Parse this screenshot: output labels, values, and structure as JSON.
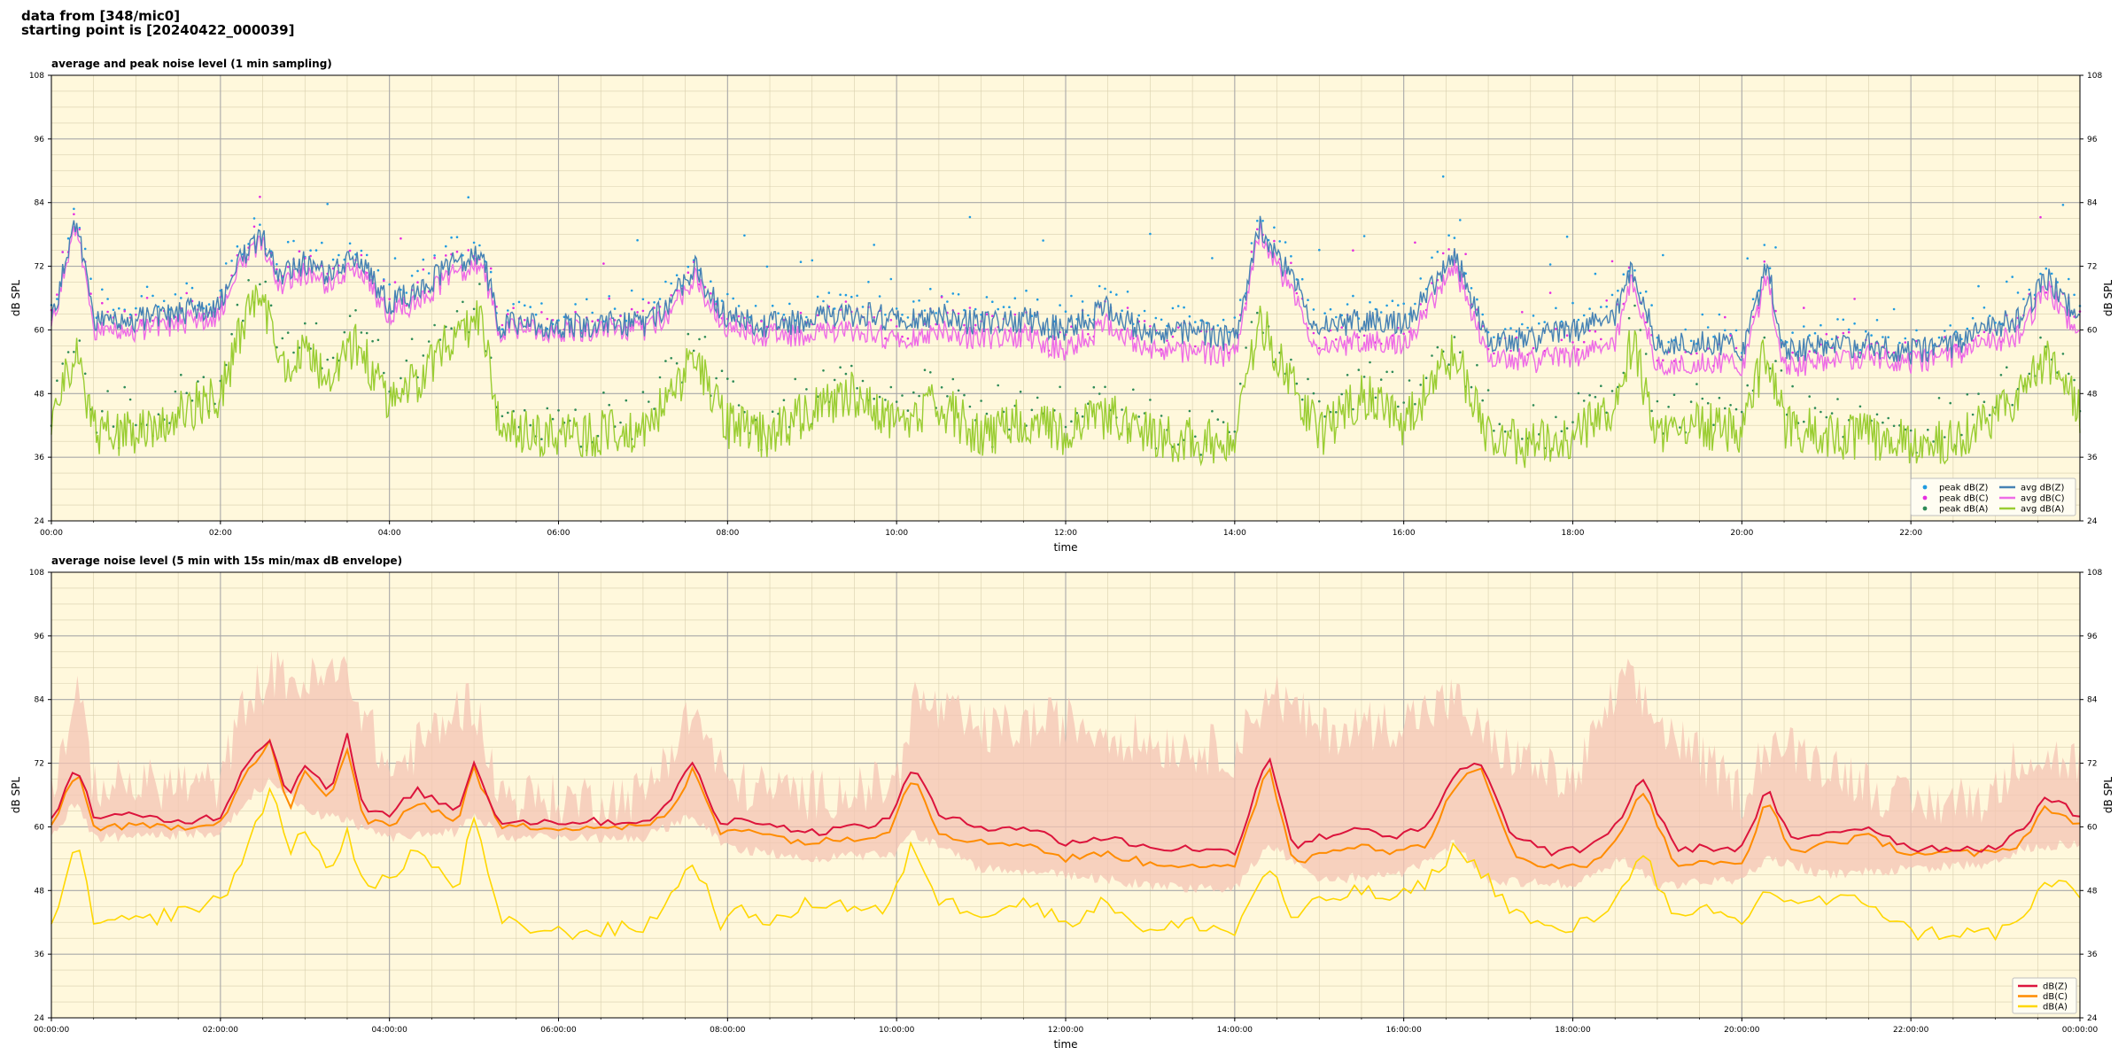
{
  "header": {
    "line1": "data from [348/mic0]",
    "line2": "starting point is [20240422_000039]"
  },
  "colors": {
    "panel_bg": "#fff8dc",
    "peak_z": "#1f9be0",
    "peak_c": "#e62de0",
    "peak_a": "#2e8b57",
    "avg_z": "#4682b4",
    "avg_c": "#ee6ce6",
    "avg_a": "#9acd32",
    "env_fill": "#f4c4b4",
    "lvl_z": "#dc143c",
    "lvl_c": "#ff8c00",
    "lvl_a": "#ffd700"
  },
  "chart_data": [
    {
      "type": "line",
      "title": "average and peak noise level (1 min sampling)",
      "xlabel": "time",
      "ylabel": "dB SPL",
      "xlim_hours": [
        0,
        24
      ],
      "ylim": [
        24,
        108
      ],
      "yticks": [
        24,
        36,
        48,
        60,
        72,
        84,
        96,
        108
      ],
      "xtick_labels": [
        "00:00",
        "02:00",
        "04:00",
        "06:00",
        "08:00",
        "10:00",
        "12:00",
        "14:00",
        "16:00",
        "18:00",
        "20:00",
        "22:00"
      ],
      "grid": true,
      "legend_position": "lower right",
      "legend": [
        {
          "label": "peak dB(Z)",
          "kind": "dot",
          "color_key": "peak_z"
        },
        {
          "label": "peak dB(C)",
          "kind": "dot",
          "color_key": "peak_c"
        },
        {
          "label": "peak dB(A)",
          "kind": "dot",
          "color_key": "peak_a"
        },
        {
          "label": "avg dB(Z)",
          "kind": "line",
          "color_key": "avg_z"
        },
        {
          "label": "avg dB(C)",
          "kind": "line",
          "color_key": "avg_c"
        },
        {
          "label": "avg dB(A)",
          "kind": "line",
          "color_key": "avg_a"
        }
      ],
      "series": [
        {
          "key": "z",
          "x_hours": [
            0,
            0.3,
            0.5,
            0.7,
            1.0,
            1.5,
            2.0,
            2.3,
            2.5,
            2.7,
            3.0,
            3.3,
            3.6,
            4.0,
            4.3,
            4.8,
            5.1,
            5.3,
            6.0,
            7.0,
            7.3,
            7.6,
            8.0,
            8.5,
            9.0,
            9.5,
            10.0,
            10.5,
            11.0,
            11.5,
            12.0,
            12.5,
            13.0,
            13.5,
            14.0,
            14.3,
            15.0,
            15.5,
            16.0,
            16.6,
            17.0,
            17.5,
            18.0,
            18.5,
            18.7,
            19.0,
            19.5,
            20.0,
            20.3,
            20.5,
            21.0,
            21.5,
            22.0,
            22.5,
            23.0,
            23.3,
            23.6,
            24.0
          ],
          "avg_z": [
            61,
            82,
            62,
            62,
            62,
            63,
            65,
            75,
            78,
            70,
            73,
            70,
            74,
            65,
            67,
            73,
            74,
            61,
            61,
            61,
            65,
            72,
            62,
            61,
            62,
            63,
            62,
            63,
            61,
            62,
            60,
            64,
            59,
            60,
            58,
            80,
            60,
            62,
            61,
            74,
            58,
            58,
            60,
            62,
            72,
            57,
            58,
            56,
            72,
            56,
            57,
            57,
            56,
            57,
            61,
            62,
            70,
            62
          ],
          "peak_offsets": [
            2,
            8,
            18
          ]
        },
        {
          "key": "c",
          "x_hours": [
            0,
            0.3,
            0.5,
            0.7,
            1.0,
            1.5,
            2.0,
            2.3,
            2.5,
            2.7,
            3.0,
            3.3,
            3.6,
            4.0,
            4.3,
            4.8,
            5.1,
            5.3,
            6.0,
            7.0,
            7.3,
            7.6,
            8.0,
            8.5,
            9.0,
            9.5,
            10.0,
            10.5,
            11.0,
            11.5,
            12.0,
            12.5,
            13.0,
            13.5,
            14.0,
            14.3,
            15.0,
            15.5,
            16.0,
            16.6,
            17.0,
            17.5,
            18.0,
            18.5,
            18.7,
            19.0,
            19.5,
            20.0,
            20.3,
            20.5,
            21.0,
            21.5,
            22.0,
            22.5,
            23.0,
            23.3,
            23.6,
            24.0
          ],
          "avg_c": [
            60,
            81,
            60,
            60,
            60,
            61,
            63,
            74,
            77,
            68,
            71,
            68,
            72,
            63,
            65,
            71,
            72,
            60,
            60,
            60,
            63,
            70,
            60,
            59,
            59,
            60,
            58,
            60,
            58,
            59,
            56,
            61,
            56,
            56,
            55,
            79,
            56,
            58,
            57,
            72,
            55,
            54,
            55,
            57,
            70,
            53,
            54,
            53,
            70,
            53,
            54,
            55,
            54,
            55,
            58,
            59,
            68,
            59
          ]
        },
        {
          "key": "a",
          "x_hours": [
            0,
            0.3,
            0.5,
            0.7,
            1.0,
            1.5,
            2.0,
            2.3,
            2.5,
            2.7,
            3.0,
            3.3,
            3.6,
            4.0,
            4.3,
            4.8,
            5.1,
            5.3,
            6.0,
            7.0,
            7.3,
            7.6,
            8.0,
            8.5,
            9.0,
            9.5,
            10.0,
            10.5,
            11.0,
            11.5,
            12.0,
            12.5,
            13.0,
            13.5,
            14.0,
            14.3,
            15.0,
            15.5,
            16.0,
            16.6,
            17.0,
            17.5,
            18.0,
            18.5,
            18.7,
            19.0,
            19.5,
            20.0,
            20.3,
            20.5,
            21.0,
            21.5,
            22.0,
            22.5,
            23.0,
            23.3,
            23.6,
            24.0
          ],
          "avg_a": [
            42,
            57,
            41,
            41,
            40,
            44,
            48,
            62,
            66,
            52,
            55,
            50,
            58,
            47,
            50,
            60,
            62,
            41,
            40,
            41,
            47,
            55,
            42,
            40,
            45,
            48,
            42,
            46,
            40,
            43,
            40,
            44,
            40,
            39,
            39,
            62,
            40,
            48,
            42,
            56,
            40,
            38,
            40,
            45,
            58,
            40,
            42,
            41,
            57,
            42,
            40,
            40,
            39,
            39,
            43,
            48,
            55,
            45
          ]
        }
      ]
    },
    {
      "type": "line",
      "title": "average noise level (5 min with 15s min/max dB envelope)",
      "xlabel": "time",
      "ylabel": "dB SPL",
      "xlim_hours": [
        0,
        24
      ],
      "ylim": [
        24,
        108
      ],
      "yticks": [
        24,
        36,
        48,
        60,
        72,
        84,
        96,
        108
      ],
      "xtick_labels": [
        "00:00:00",
        "02:00:00",
        "04:00:00",
        "06:00:00",
        "08:00:00",
        "10:00:00",
        "12:00:00",
        "14:00:00",
        "16:00:00",
        "18:00:00",
        "20:00:00",
        "22:00:00",
        "00:00:00"
      ],
      "grid": true,
      "legend_position": "lower right",
      "legend": [
        {
          "label": "dB(Z)",
          "color_key": "lvl_z"
        },
        {
          "label": "dB(C)",
          "color_key": "lvl_c"
        },
        {
          "label": "dB(A)",
          "color_key": "lvl_a"
        }
      ],
      "series": [
        {
          "key": "z",
          "x_hours": [
            0,
            0.3,
            0.5,
            1.0,
            1.5,
            2.0,
            2.3,
            2.6,
            2.8,
            3.0,
            3.3,
            3.5,
            3.7,
            4.0,
            4.3,
            4.8,
            5.0,
            5.3,
            6.0,
            7.0,
            7.3,
            7.6,
            7.9,
            8.2,
            8.6,
            9.0,
            9.5,
            9.9,
            10.2,
            10.5,
            11.0,
            11.5,
            12.0,
            12.5,
            13.0,
            13.5,
            14.0,
            14.4,
            14.7,
            15.0,
            15.5,
            15.9,
            16.3,
            16.6,
            16.9,
            17.3,
            17.8,
            18.2,
            18.6,
            18.8,
            19.2,
            19.6,
            20.0,
            20.3,
            20.6,
            21.0,
            21.5,
            22.0,
            22.5,
            23.0,
            23.3,
            23.6,
            24.0
          ],
          "values": [
            61,
            72,
            62,
            62,
            61,
            62,
            72,
            77,
            65,
            72,
            67,
            77,
            63,
            62,
            67,
            63,
            72,
            61,
            61,
            61,
            64,
            73,
            60,
            62,
            60,
            59,
            60,
            61,
            72,
            62,
            60,
            60,
            57,
            58,
            56,
            56,
            55,
            74,
            56,
            58,
            60,
            58,
            60,
            70,
            72,
            58,
            55,
            56,
            62,
            70,
            56,
            56,
            56,
            67,
            57,
            59,
            60,
            56,
            56,
            56,
            59,
            66,
            62
          ]
        },
        {
          "key": "c",
          "x_hours": [
            0,
            0.3,
            0.5,
            1.0,
            1.5,
            2.0,
            2.3,
            2.6,
            2.8,
            3.0,
            3.3,
            3.5,
            3.7,
            4.0,
            4.3,
            4.8,
            5.0,
            5.3,
            6.0,
            7.0,
            7.3,
            7.6,
            7.9,
            8.2,
            8.6,
            9.0,
            9.5,
            9.9,
            10.2,
            10.5,
            11.0,
            11.5,
            12.0,
            12.5,
            13.0,
            13.5,
            14.0,
            14.4,
            14.7,
            15.0,
            15.5,
            15.9,
            16.3,
            16.6,
            16.9,
            17.3,
            17.8,
            18.2,
            18.6,
            18.8,
            19.2,
            19.6,
            20.0,
            20.3,
            20.6,
            21.0,
            21.5,
            22.0,
            22.5,
            23.0,
            23.3,
            23.6,
            24.0
          ],
          "values": [
            60,
            71,
            60,
            60,
            60,
            61,
            70,
            76,
            63,
            70,
            65,
            75,
            61,
            60,
            65,
            61,
            71,
            60,
            60,
            60,
            62,
            71,
            59,
            60,
            58,
            57,
            58,
            59,
            70,
            59,
            57,
            57,
            54,
            55,
            53,
            53,
            52,
            72,
            53,
            55,
            57,
            55,
            57,
            68,
            71,
            55,
            52,
            53,
            59,
            68,
            53,
            53,
            53,
            65,
            55,
            57,
            58,
            55,
            55,
            55,
            57,
            64,
            60
          ]
        },
        {
          "key": "a",
          "x_hours": [
            0,
            0.3,
            0.5,
            1.0,
            1.5,
            2.0,
            2.3,
            2.6,
            2.8,
            3.0,
            3.3,
            3.5,
            3.7,
            4.0,
            4.3,
            4.8,
            5.0,
            5.3,
            6.0,
            7.0,
            7.3,
            7.6,
            7.9,
            8.2,
            8.6,
            9.0,
            9.5,
            9.9,
            10.2,
            10.5,
            11.0,
            11.5,
            12.0,
            12.5,
            13.0,
            13.5,
            14.0,
            14.4,
            14.7,
            15.0,
            15.5,
            15.9,
            16.3,
            16.6,
            16.9,
            17.3,
            17.8,
            18.2,
            18.6,
            18.8,
            19.2,
            19.6,
            20.0,
            20.3,
            20.6,
            21.0,
            21.5,
            22.0,
            22.5,
            23.0,
            23.3,
            23.6,
            24.0
          ],
          "values": [
            42,
            57,
            42,
            42,
            44,
            46,
            55,
            68,
            56,
            58,
            52,
            60,
            48,
            50,
            56,
            48,
            62,
            42,
            40,
            41,
            46,
            54,
            42,
            44,
            42,
            46,
            45,
            44,
            57,
            46,
            44,
            46,
            42,
            46,
            40,
            42,
            40,
            53,
            42,
            46,
            48,
            46,
            50,
            56,
            52,
            44,
            40,
            42,
            48,
            57,
            42,
            44,
            42,
            48,
            46,
            46,
            46,
            40,
            40,
            40,
            42,
            50,
            47
          ]
        }
      ],
      "envelope": {
        "x_hours": [
          0,
          0.3,
          0.5,
          1.0,
          2.0,
          2.3,
          2.6,
          3.0,
          3.5,
          4.0,
          4.8,
          5.0,
          5.3,
          6.0,
          7.0,
          7.6,
          8.0,
          9.0,
          10.0,
          10.2,
          11.0,
          12.0,
          13.0,
          14.0,
          14.4,
          15.0,
          16.0,
          16.6,
          17.0,
          18.0,
          18.6,
          19.0,
          20.0,
          20.3,
          21.0,
          22.0,
          23.0,
          23.3,
          24.0
        ],
        "max": [
          64,
          84,
          66,
          66,
          66,
          82,
          87,
          85,
          87,
          68,
          80,
          82,
          64,
          63,
          64,
          80,
          66,
          64,
          66,
          82,
          76,
          78,
          74,
          72,
          84,
          76,
          78,
          82,
          74,
          66,
          86,
          78,
          64,
          74,
          70,
          62,
          64,
          72,
          70
        ],
        "min": [
          59,
          66,
          59,
          59,
          60,
          66,
          70,
          64,
          62,
          59,
          60,
          64,
          59,
          59,
          59,
          63,
          57,
          55,
          56,
          60,
          53,
          52,
          50,
          49,
          58,
          51,
          52,
          58,
          51,
          50,
          55,
          50,
          51,
          55,
          52,
          53,
          54,
          57,
          58
        ]
      }
    }
  ]
}
